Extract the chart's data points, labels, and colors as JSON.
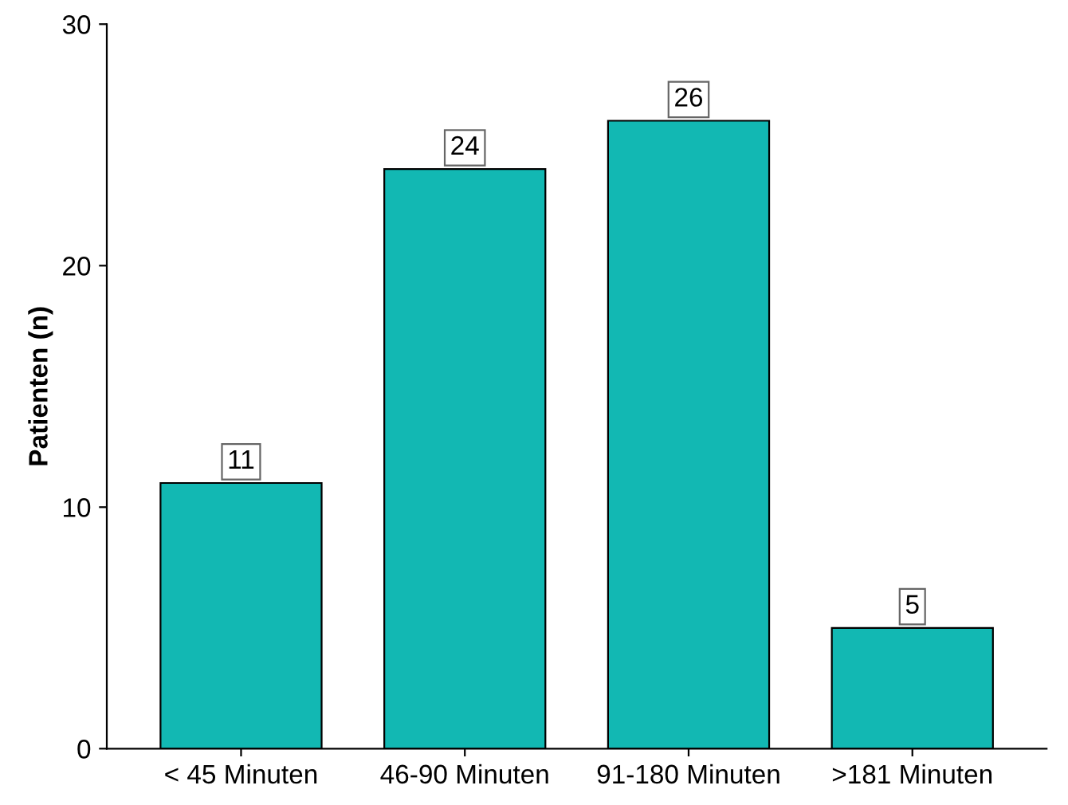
{
  "chart_data": {
    "type": "bar",
    "ylabel": "Patienten (n)",
    "categories": [
      "< 45 Minuten",
      "46-90 Minuten",
      "91-180 Minuten",
      ">181 Minuten"
    ],
    "values": [
      11,
      24,
      26,
      5
    ],
    "color": "#12b8b3",
    "ylim": [
      0,
      30
    ],
    "yticks": [
      0,
      10,
      20,
      30
    ],
    "data_labels": true,
    "grid": false,
    "legend": false
  }
}
